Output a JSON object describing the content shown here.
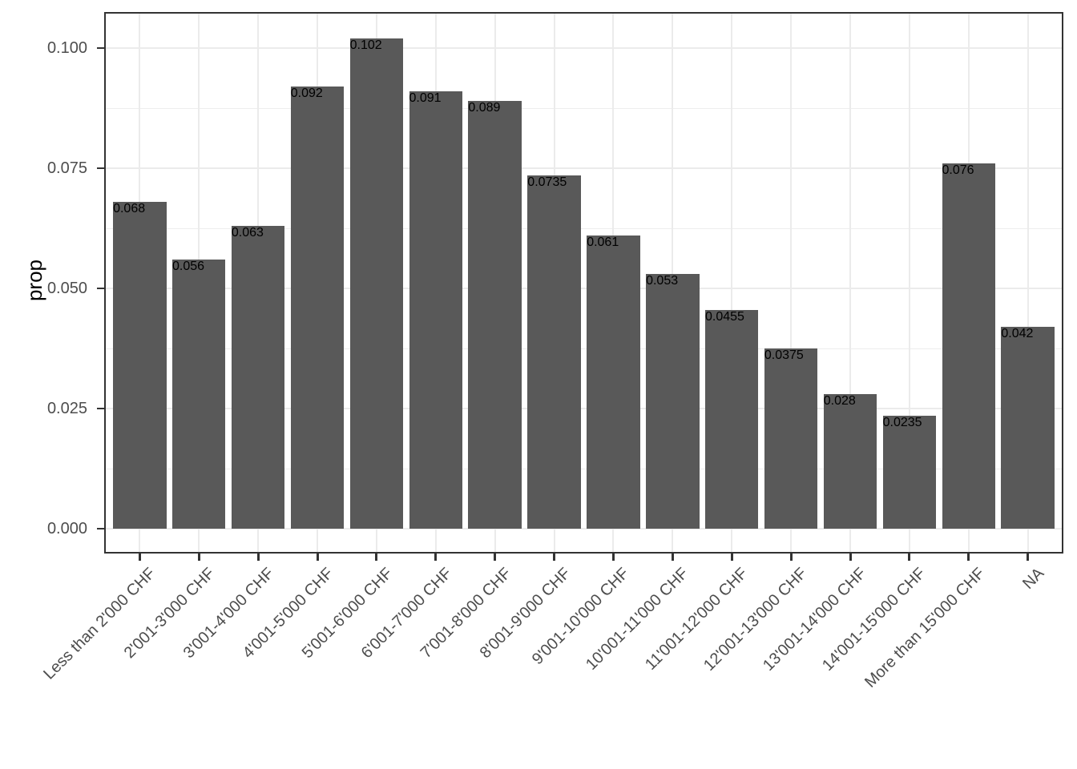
{
  "chart_data": {
    "type": "bar",
    "title": "",
    "xlabel": "",
    "ylabel": "prop",
    "categories": [
      "Less than 2'000 CHF",
      "2'001-3'000 CHF",
      "3'001-4'000 CHF",
      "4'001-5'000 CHF",
      "5'001-6'000 CHF",
      "6'001-7'000 CHF",
      "7'001-8'000 CHF",
      "8'001-9'000 CHF",
      "9'001-10'000 CHF",
      "10'001-11'000 CHF",
      "11'001-12'000 CHF",
      "12'001-13'000 CHF",
      "13'001-14'000 CHF",
      "14'001-15'000 CHF",
      "More than 15'000 CHF",
      "NA"
    ],
    "values": [
      0.068,
      0.056,
      0.063,
      0.092,
      0.102,
      0.091,
      0.089,
      0.0735,
      0.061,
      0.053,
      0.0455,
      0.0375,
      0.028,
      0.0235,
      0.076,
      0.042
    ],
    "ylim": [
      0,
      0.1075
    ],
    "yticks": [
      0,
      0.025,
      0.05,
      0.075,
      0.1
    ],
    "ytick_labels": [
      "0.000",
      "0.025",
      "0.050",
      "0.075",
      "0.100"
    ],
    "grid": true,
    "legend": "none",
    "colors": {
      "bar_fill": "#595959",
      "panel_border": "#333333",
      "gridline": "#ebebeb",
      "tick_mark": "#333333",
      "tick_label": "#4d4d4d",
      "axis_title": "#000000",
      "background": "#ffffff"
    }
  }
}
